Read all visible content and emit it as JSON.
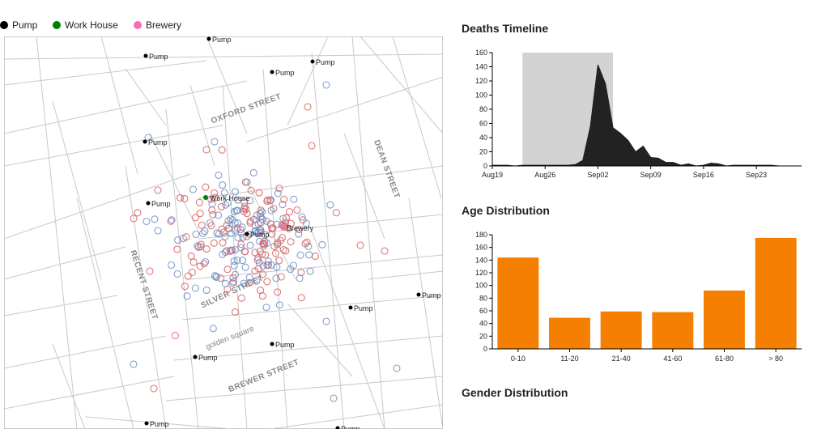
{
  "legend": [
    {
      "label": "Pump",
      "color": "#000000"
    },
    {
      "label": "Work House",
      "color": "#008000"
    },
    {
      "label": "Brewery",
      "color": "#ff69b4"
    }
  ],
  "map": {
    "street_labels": [
      "OXFORD STREET",
      "DEAN STREET",
      "RECENT STREET",
      "SILVER STREET",
      "golden square",
      "BREWER STREET"
    ],
    "pump_label": "Pump",
    "workhouse_label": "Work House",
    "brewery_label": "Brewery",
    "death_colors": {
      "male": "#6a8ec8",
      "female": "#d95f5f"
    }
  },
  "panels": {
    "timeline_title": "Deaths Timeline",
    "age_title": "Age Distribution",
    "gender_title": "Gender Distribution"
  },
  "chart_data": [
    {
      "type": "area",
      "title": "Deaths Timeline",
      "x_ticks": [
        "Aug19",
        "Aug26",
        "Sep02",
        "Sep09",
        "Sep16",
        "Sep23"
      ],
      "y_ticks": [
        0,
        20,
        40,
        60,
        80,
        100,
        120,
        140,
        160
      ],
      "ylim": [
        0,
        160
      ],
      "x": [
        "Aug19",
        "Aug20",
        "Aug21",
        "Aug22",
        "Aug23",
        "Aug24",
        "Aug25",
        "Aug26",
        "Aug27",
        "Aug28",
        "Aug29",
        "Aug30",
        "Aug31",
        "Sep01",
        "Sep02",
        "Sep03",
        "Sep04",
        "Sep05",
        "Sep06",
        "Sep07",
        "Sep08",
        "Sep09",
        "Sep10",
        "Sep11",
        "Sep12",
        "Sep13",
        "Sep14",
        "Sep15",
        "Sep16",
        "Sep17",
        "Sep18",
        "Sep19",
        "Sep20",
        "Sep21",
        "Sep22",
        "Sep23",
        "Sep24",
        "Sep25",
        "Sep26",
        "Sep27",
        "Sep28",
        "Sep29"
      ],
      "values": [
        1,
        1,
        1,
        0,
        1,
        1,
        1,
        1,
        1,
        1,
        1,
        2,
        8,
        56,
        143,
        116,
        54,
        46,
        36,
        20,
        28,
        12,
        11,
        5,
        5,
        1,
        3,
        0,
        1,
        4,
        3,
        0,
        1,
        1,
        1,
        1,
        1,
        1,
        0,
        0,
        0,
        0
      ],
      "highlight_range": [
        "Aug23",
        "Sep04"
      ],
      "color": "#222222",
      "highlight_color": "#d3d3d3"
    },
    {
      "type": "bar",
      "title": "Age Distribution",
      "categories": [
        "0-10",
        "11-20",
        "21-40",
        "41-60",
        "61-80",
        "> 80"
      ],
      "values": [
        144,
        49,
        59,
        58,
        92,
        175
      ],
      "y_ticks": [
        0,
        20,
        40,
        60,
        80,
        100,
        120,
        140,
        160,
        180
      ],
      "ylim": [
        0,
        180
      ],
      "color": "#f57f00"
    }
  ]
}
